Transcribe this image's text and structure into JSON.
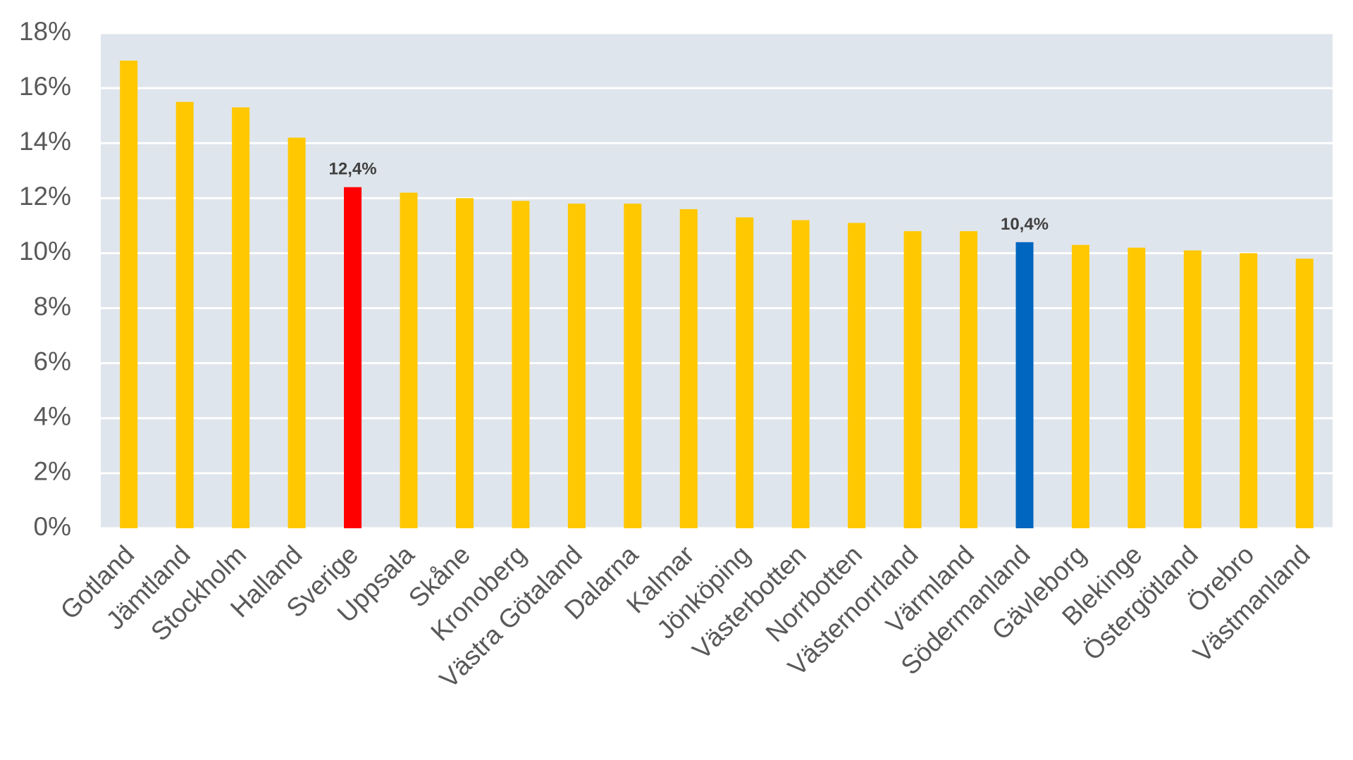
{
  "chart_data": {
    "type": "bar",
    "title": "",
    "xlabel": "",
    "ylabel": "",
    "ylim": [
      0,
      18
    ],
    "yticks": [
      "0%",
      "2%",
      "4%",
      "6%",
      "8%",
      "10%",
      "12%",
      "14%",
      "16%",
      "18%"
    ],
    "grid": true,
    "legend": "none",
    "categories": [
      "Gotland",
      "Jämtland",
      "Stockholm",
      "Halland",
      "Sverige",
      "Uppsala",
      "Skåne",
      "Kronoberg",
      "Västra Götaland",
      "Dalarna",
      "Kalmar",
      "Jönköping",
      "Västerbotten",
      "Norrbotten",
      "Västernorrland",
      "Värmland",
      "Södermanland",
      "Gävleborg",
      "Blekinge",
      "Östergötland",
      "Örebro",
      "Västmanland"
    ],
    "values": [
      17.0,
      15.5,
      15.3,
      14.2,
      12.4,
      12.2,
      12.0,
      11.9,
      11.8,
      11.8,
      11.6,
      11.3,
      11.2,
      11.1,
      10.8,
      10.8,
      10.4,
      10.3,
      10.2,
      10.1,
      10.0,
      9.8
    ],
    "data_labels": {
      "Sverige": "12,4%",
      "Södermanland": "10,4%"
    },
    "colors": {
      "default": "#FFC800",
      "highlight": {
        "Sverige": "#FF0000",
        "Södermanland": "#0066BF"
      },
      "plot_background": "#DFE5EC",
      "gridline": "#FFFFFF"
    }
  }
}
